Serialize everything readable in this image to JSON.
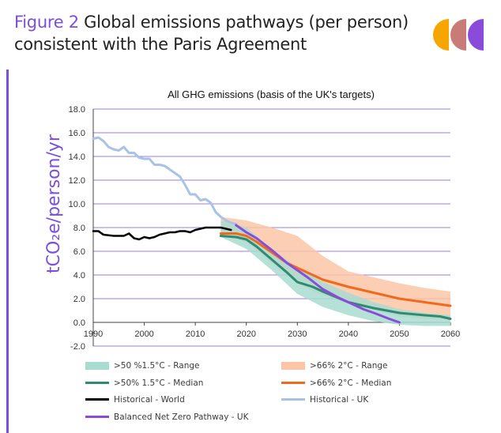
{
  "figure": {
    "number": "Figure 2",
    "title": "Global emissions pathways (per person)",
    "title_line2": "consistent with the Paris Agreement"
  },
  "chart_data": {
    "type": "line",
    "title": "All GHG emissions (basis of the UK's targets)",
    "ylabel": "tCO₂e/person/yr",
    "xlabel": "",
    "xlim": [
      1990,
      2060
    ],
    "ylim": [
      -2.0,
      18.0
    ],
    "xticks": [
      "1990",
      "2000",
      "2010",
      "2020",
      "2030",
      "2040",
      "2050",
      "2060"
    ],
    "yticks": [
      "-2.0",
      "0.0",
      "2.0",
      "4.0",
      "6.0",
      "8.0",
      "10.0",
      "12.0",
      "14.0",
      "16.0",
      "18.0"
    ],
    "grid": true,
    "legend_position": "bottom",
    "bands": [
      {
        "name": ">50 %1.5°C - Range",
        "color": "#a8dcd0",
        "x": [
          2015,
          2020,
          2025,
          2030,
          2035,
          2040,
          2045,
          2050,
          2055,
          2060
        ],
        "upper": [
          8.6,
          8.0,
          6.2,
          4.6,
          3.4,
          2.5,
          1.7,
          1.1,
          0.8,
          0.6
        ],
        "lower": [
          7.2,
          6.2,
          4.4,
          2.4,
          1.3,
          0.6,
          0.1,
          -0.2,
          -0.3,
          -0.3
        ]
      },
      {
        "name": ">66% 2°C - Range",
        "color": "#fcc6a6",
        "x": [
          2015,
          2020,
          2025,
          2030,
          2035,
          2040,
          2045,
          2050,
          2055,
          2060
        ],
        "upper": [
          8.9,
          8.6,
          8.0,
          7.3,
          5.6,
          4.3,
          3.8,
          3.3,
          2.9,
          2.6
        ],
        "lower": [
          7.3,
          6.8,
          5.0,
          3.3,
          2.3,
          1.6,
          1.0,
          0.5,
          0.3,
          0.2
        ]
      }
    ],
    "series": [
      {
        "name": ">50% 1.5°C - Median",
        "color": "#2e8b72",
        "x": [
          2015,
          2018,
          2020,
          2022,
          2025,
          2028,
          2030,
          2033,
          2035,
          2040,
          2045,
          2050,
          2055,
          2058,
          2060
        ],
        "values": [
          7.3,
          7.2,
          7.0,
          6.4,
          5.3,
          4.2,
          3.4,
          3.0,
          2.6,
          1.7,
          1.2,
          0.8,
          0.6,
          0.5,
          0.3
        ]
      },
      {
        "name": ">66% 2°C - Median",
        "color": "#f06a1e",
        "x": [
          2015,
          2018,
          2020,
          2022,
          2025,
          2028,
          2030,
          2035,
          2040,
          2045,
          2050,
          2055,
          2060
        ],
        "values": [
          7.5,
          7.5,
          7.3,
          6.8,
          5.9,
          5.0,
          4.6,
          3.6,
          3.0,
          2.5,
          2.0,
          1.7,
          1.4
        ]
      },
      {
        "name": "Historical - World",
        "color": "#000000",
        "x": [
          1990,
          1991,
          1992,
          1993,
          1994,
          1995,
          1996,
          1997,
          1998,
          1999,
          2000,
          2001,
          2002,
          2003,
          2004,
          2005,
          2006,
          2007,
          2008,
          2009,
          2010,
          2011,
          2012,
          2013,
          2014,
          2015,
          2016,
          2017
        ],
        "values": [
          7.7,
          7.7,
          7.4,
          7.35,
          7.3,
          7.3,
          7.3,
          7.5,
          7.1,
          7.0,
          7.2,
          7.1,
          7.2,
          7.4,
          7.5,
          7.6,
          7.6,
          7.7,
          7.7,
          7.6,
          7.8,
          7.9,
          8.0,
          8.0,
          8.0,
          8.0,
          7.9,
          7.8
        ]
      },
      {
        "name": "Historical - UK",
        "color": "#a9c3e6",
        "x": [
          1990,
          1991,
          1992,
          1993,
          1994,
          1995,
          1996,
          1997,
          1998,
          1999,
          2000,
          2001,
          2002,
          2003,
          2004,
          2005,
          2006,
          2007,
          2008,
          2009,
          2010,
          2011,
          2012,
          2013,
          2014,
          2015,
          2016,
          2017,
          2018
        ],
        "values": [
          15.5,
          15.6,
          15.3,
          14.8,
          14.6,
          14.5,
          14.8,
          14.3,
          14.3,
          13.9,
          13.8,
          13.8,
          13.3,
          13.3,
          13.2,
          12.9,
          12.6,
          12.3,
          11.6,
          10.8,
          10.8,
          10.3,
          10.4,
          10.1,
          9.3,
          8.9,
          8.6,
          8.4,
          8.3
        ]
      },
      {
        "name": "Balanced Net Zero Pathway - UK",
        "color": "#8a4bdb",
        "x": [
          2018,
          2020,
          2022,
          2025,
          2028,
          2030,
          2032,
          2035,
          2038,
          2040,
          2043,
          2045,
          2048,
          2050
        ],
        "values": [
          8.2,
          7.6,
          7.1,
          6.1,
          5.0,
          4.4,
          3.8,
          2.8,
          2.1,
          1.7,
          1.1,
          0.8,
          0.3,
          0.0
        ]
      }
    ]
  },
  "logo": {
    "name": "CCC",
    "colors": [
      "#f7a600",
      "#c97b78",
      "#8a4bdb"
    ]
  }
}
